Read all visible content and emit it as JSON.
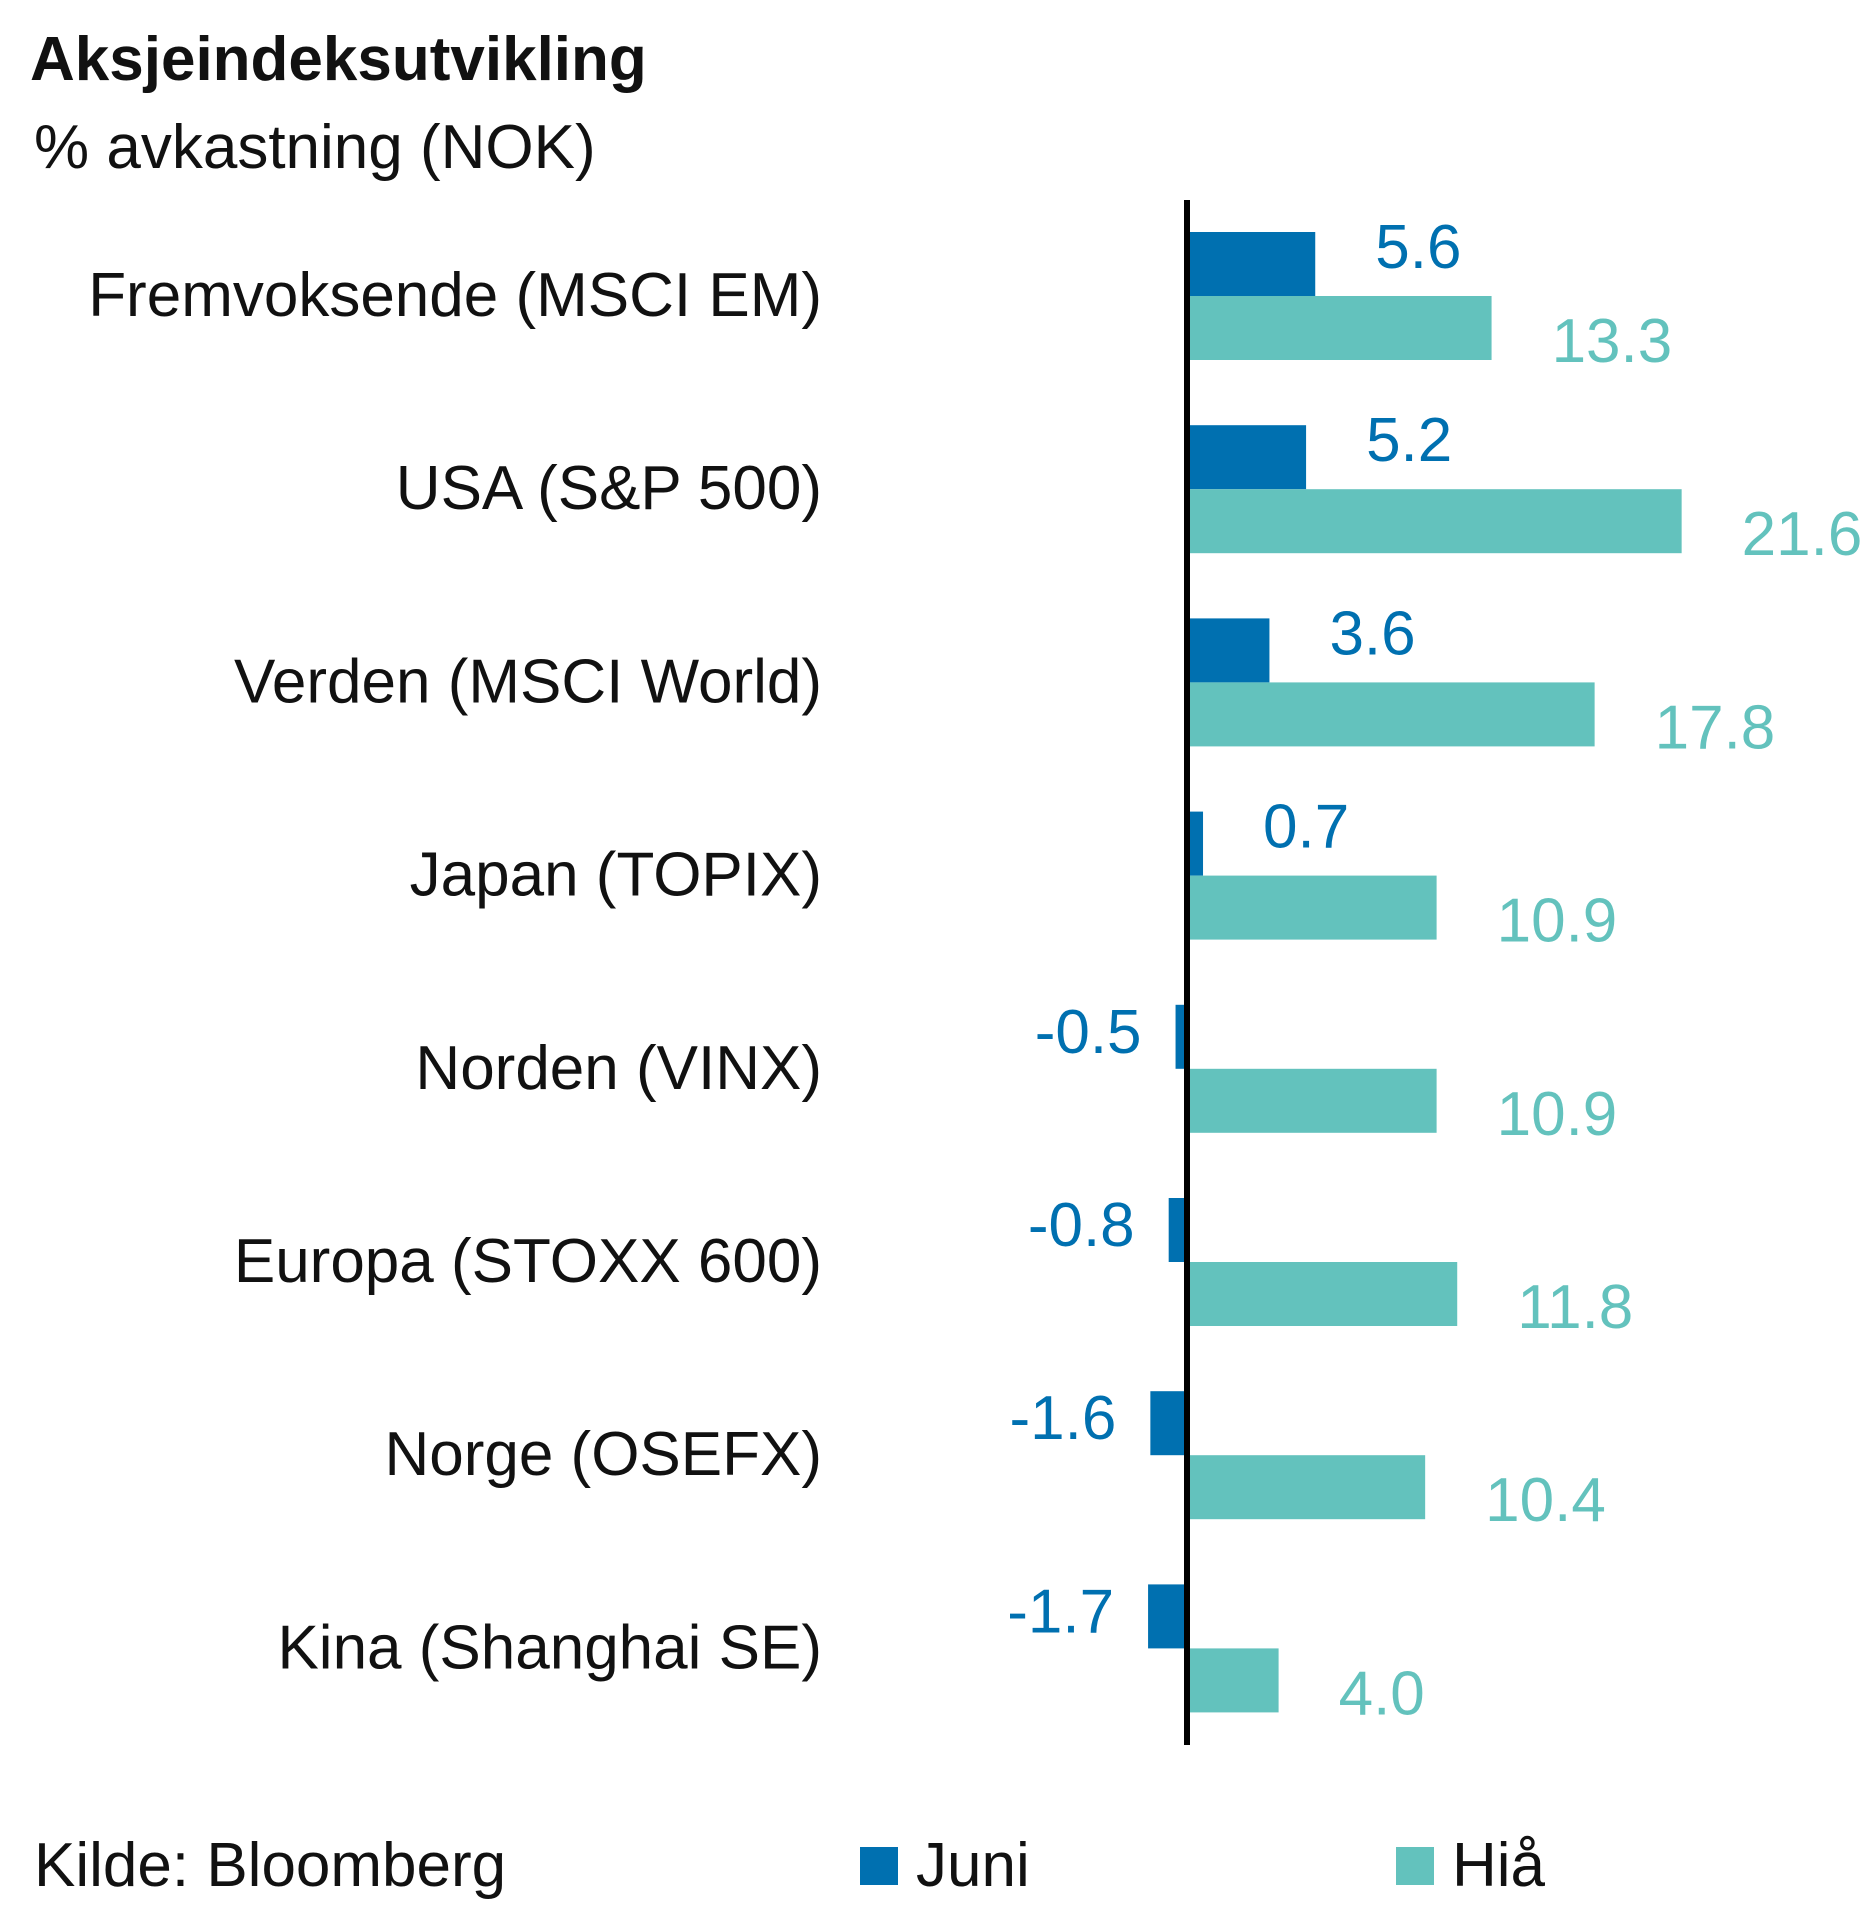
{
  "chart_data": {
    "type": "bar",
    "orientation": "horizontal",
    "title": "Aksjeindeksutvikling",
    "subtitle": "% avkastning (NOK)",
    "categories": [
      "Fremvoksende (MSCI EM)",
      "USA (S&P 500)",
      "Verden (MSCI World)",
      "Japan (TOPIX)",
      "Norden (VINX)",
      "Europa (STOXX 600)",
      "Norge (OSEFX)",
      "Kina (Shanghai SE)"
    ],
    "series": [
      {
        "name": "Juni",
        "color": "#0070b0",
        "values": [
          5.6,
          5.2,
          3.6,
          0.7,
          -0.5,
          -0.8,
          -1.6,
          -1.7
        ]
      },
      {
        "name": "Hiå",
        "color": "#63c2bd",
        "values": [
          13.3,
          21.6,
          17.8,
          10.9,
          10.9,
          11.8,
          10.4,
          4.0
        ]
      }
    ],
    "value_labels": [
      [
        "5.6",
        "5.2",
        "3.6",
        "0.7",
        "-0.5",
        "-0.8",
        "-1.6",
        "-1.7"
      ],
      [
        "13.3",
        "21.6",
        "17.8",
        "10.9",
        "10.9",
        "11.8",
        "10.4",
        "4.0"
      ]
    ],
    "xlim": [
      -2,
      22
    ],
    "grid": false,
    "legend_position": "bottom",
    "source": "Kilde: Bloomberg"
  }
}
